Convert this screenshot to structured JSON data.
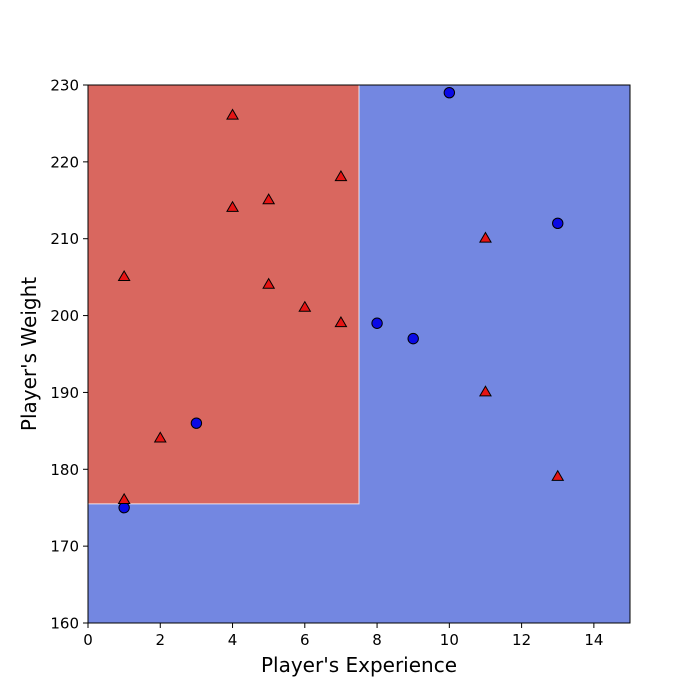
{
  "chart_data": {
    "type": "scatter",
    "title": "",
    "xlabel": "Player's Experience",
    "ylabel": "Player's Weight",
    "xlim": [
      0,
      15
    ],
    "ylim": [
      160,
      230
    ],
    "xticks": [
      0,
      2,
      4,
      6,
      8,
      10,
      12,
      14
    ],
    "yticks": [
      160,
      170,
      180,
      190,
      200,
      210,
      220,
      230
    ],
    "grid": false,
    "legend": "none",
    "decision_regions": [
      {
        "class": "triangle",
        "color": "#d9675f",
        "x": [
          0,
          7.5
        ],
        "y": [
          175.5,
          230
        ]
      },
      {
        "class": "circle",
        "color": "#7387e1",
        "x": [
          0,
          15
        ],
        "y": [
          160,
          230
        ]
      }
    ],
    "series": [
      {
        "marker": "circle",
        "color": "#0a0ae6",
        "points": [
          {
            "x": 1,
            "y": 175
          },
          {
            "x": 3,
            "y": 186
          },
          {
            "x": 8,
            "y": 199
          },
          {
            "x": 9,
            "y": 197
          },
          {
            "x": 10,
            "y": 229
          },
          {
            "x": 13,
            "y": 212
          }
        ]
      },
      {
        "marker": "triangle",
        "color": "#e61414",
        "points": [
          {
            "x": 1,
            "y": 176
          },
          {
            "x": 1,
            "y": 205
          },
          {
            "x": 2,
            "y": 184
          },
          {
            "x": 4,
            "y": 226
          },
          {
            "x": 4,
            "y": 214
          },
          {
            "x": 5,
            "y": 215
          },
          {
            "x": 5,
            "y": 204
          },
          {
            "x": 6,
            "y": 201
          },
          {
            "x": 7,
            "y": 218
          },
          {
            "x": 7,
            "y": 199
          },
          {
            "x": 11,
            "y": 210
          },
          {
            "x": 11,
            "y": 190
          },
          {
            "x": 13,
            "y": 179
          }
        ]
      }
    ]
  }
}
